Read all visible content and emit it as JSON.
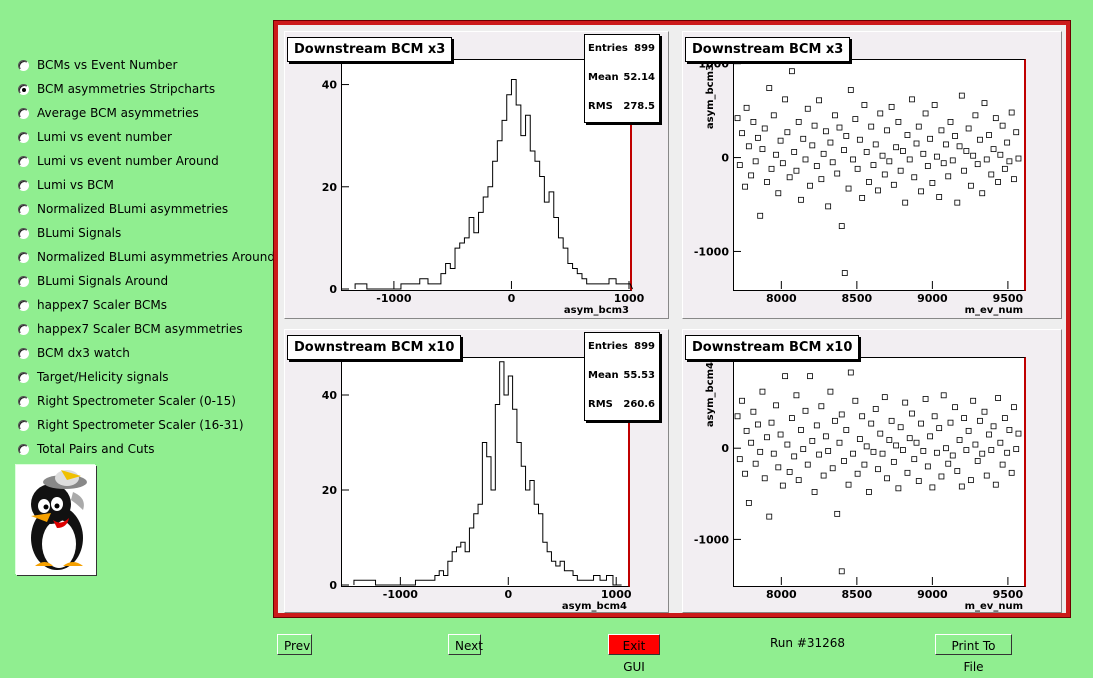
{
  "menu": {
    "items": [
      {
        "label": "BCMs vs Event Number",
        "selected": false
      },
      {
        "label": "BCM asymmetries Stripcharts",
        "selected": true
      },
      {
        "label": "Average BCM asymmetries",
        "selected": false
      },
      {
        "label": "Lumi vs event number",
        "selected": false
      },
      {
        "label": "Lumi vs event number Around",
        "selected": false
      },
      {
        "label": "Lumi vs BCM",
        "selected": false
      },
      {
        "label": "Normalized BLumi asymmetries",
        "selected": false
      },
      {
        "label": "BLumi Signals",
        "selected": false
      },
      {
        "label": "Normalized BLumi asymmetries Around",
        "selected": false
      },
      {
        "label": "BLumi Signals Around",
        "selected": false
      },
      {
        "label": "happex7 Scaler BCMs",
        "selected": false
      },
      {
        "label": "happex7 Scaler BCM asymmetries",
        "selected": false
      },
      {
        "label": "BCM dx3 watch",
        "selected": false
      },
      {
        "label": "Target/Helicity signals",
        "selected": false
      },
      {
        "label": "Right Spectrometer Scaler (0-15)",
        "selected": false
      },
      {
        "label": "Right Spectrometer Scaler (16-31)",
        "selected": false
      },
      {
        "label": "Total Pairs and Cuts",
        "selected": false
      }
    ]
  },
  "buttons": {
    "prev": "Prev",
    "next": "Next",
    "exit": "Exit GUI",
    "print": "Print To File"
  },
  "run_label": "Run #31268",
  "colors": {
    "background": "#90ee90",
    "frame": "#cc1a1a",
    "exit_button": "#ff0000"
  },
  "chart_data": [
    {
      "type": "histogram",
      "title": "Downstream BCM x3",
      "xlabel": "asym_bcm3",
      "xlim": [
        -1450,
        1000
      ],
      "ylim": [
        0,
        45
      ],
      "xticks": [
        -1000,
        0,
        1000
      ],
      "xtick_labels": [
        "-1000",
        "0",
        "1000"
      ],
      "yticks": [
        0,
        20,
        40
      ],
      "ytick_labels": [
        "0",
        "20",
        "40"
      ],
      "stats": [
        {
          "name": "Entries",
          "value": "899"
        },
        {
          "name": "Mean",
          "value": "52.14"
        },
        {
          "name": "RMS",
          "value": "278.5"
        }
      ],
      "x": [
        -1280,
        -1180,
        -1080,
        -980,
        -900,
        -820,
        -740,
        -680,
        -620,
        -580,
        -540,
        -500,
        -460,
        -420,
        -380,
        -340,
        -300,
        -260,
        -220,
        -180,
        -140,
        -100,
        -60,
        -20,
        20,
        60,
        100,
        140,
        180,
        220,
        260,
        300,
        340,
        380,
        420,
        460,
        500,
        540,
        580,
        620,
        660,
        700,
        740,
        800,
        860,
        920,
        980
      ],
      "values": [
        1,
        0,
        0,
        0,
        1,
        1,
        2,
        1,
        1,
        3,
        5,
        4,
        8,
        9,
        10,
        14,
        11,
        15,
        18,
        20,
        25,
        29,
        33,
        38,
        41,
        36,
        30,
        34,
        27,
        25,
        22,
        17,
        19,
        14,
        10,
        8,
        5,
        4,
        3,
        2,
        1,
        1,
        1,
        1,
        2,
        1,
        1
      ]
    },
    {
      "type": "scatter",
      "title": "Downstream BCM x3",
      "xlabel": "m_ev_num",
      "ylabel": "asym_bcm3",
      "xlim": [
        7680,
        9600
      ],
      "ylim": [
        -1400,
        1050
      ],
      "xticks": [
        8000,
        8500,
        9000,
        9500
      ],
      "xtick_labels": [
        "8000",
        "8500",
        "9000",
        "9500"
      ],
      "yticks": [
        -1000,
        0,
        1000
      ],
      "ytick_labels": [
        "-1000",
        "0",
        "1000"
      ],
      "points": [
        [
          7710,
          420
        ],
        [
          7725,
          -80
        ],
        [
          7740,
          260
        ],
        [
          7760,
          -310
        ],
        [
          7770,
          530
        ],
        [
          7785,
          120
        ],
        [
          7800,
          -190
        ],
        [
          7815,
          380
        ],
        [
          7830,
          -40
        ],
        [
          7845,
          210
        ],
        [
          7860,
          -620
        ],
        [
          7875,
          90
        ],
        [
          7890,
          310
        ],
        [
          7905,
          -260
        ],
        [
          7920,
          740
        ],
        [
          7935,
          -120
        ],
        [
          7950,
          450
        ],
        [
          7965,
          30
        ],
        [
          7980,
          -380
        ],
        [
          7995,
          180
        ],
        [
          8010,
          -60
        ],
        [
          8025,
          620
        ],
        [
          8040,
          270
        ],
        [
          8055,
          -210
        ],
        [
          8070,
          920
        ],
        [
          8085,
          60
        ],
        [
          8100,
          -140
        ],
        [
          8115,
          380
        ],
        [
          8130,
          -450
        ],
        [
          8145,
          200
        ],
        [
          8160,
          -20
        ],
        [
          8175,
          520
        ],
        [
          8190,
          -300
        ],
        [
          8205,
          130
        ],
        [
          8220,
          340
        ],
        [
          8235,
          -90
        ],
        [
          8250,
          610
        ],
        [
          8265,
          -230
        ],
        [
          8280,
          40
        ],
        [
          8295,
          280
        ],
        [
          8310,
          -520
        ],
        [
          8325,
          160
        ],
        [
          8340,
          -50
        ],
        [
          8355,
          450
        ],
        [
          8370,
          -170
        ],
        [
          8385,
          320
        ],
        [
          8400,
          -730
        ],
        [
          8415,
          80
        ],
        [
          8430,
          230
        ],
        [
          8445,
          -330
        ],
        [
          8460,
          720
        ],
        [
          8475,
          -20
        ],
        [
          8490,
          410
        ],
        [
          8505,
          -120
        ],
        [
          8520,
          190
        ],
        [
          8535,
          -430
        ],
        [
          8550,
          560
        ],
        [
          8565,
          60
        ],
        [
          8580,
          -260
        ],
        [
          8595,
          330
        ],
        [
          8610,
          -80
        ],
        [
          8625,
          140
        ],
        [
          8640,
          -350
        ],
        [
          8655,
          470
        ],
        [
          8670,
          20
        ],
        [
          8685,
          -180
        ],
        [
          8700,
          290
        ],
        [
          8715,
          -40
        ],
        [
          8730,
          540
        ],
        [
          8745,
          -290
        ],
        [
          8760,
          110
        ],
        [
          8775,
          380
        ],
        [
          8790,
          -140
        ],
        [
          8805,
          70
        ],
        [
          8820,
          -480
        ],
        [
          8835,
          240
        ],
        [
          8850,
          -20
        ],
        [
          8865,
          620
        ],
        [
          8880,
          -210
        ],
        [
          8895,
          150
        ],
        [
          8910,
          330
        ],
        [
          8925,
          -360
        ],
        [
          8940,
          40
        ],
        [
          8955,
          470
        ],
        [
          8970,
          -90
        ],
        [
          8985,
          200
        ],
        [
          9000,
          -270
        ],
        [
          9015,
          560
        ],
        [
          9030,
          10
        ],
        [
          9045,
          -420
        ],
        [
          9060,
          290
        ],
        [
          9075,
          -60
        ],
        [
          9090,
          140
        ],
        [
          9105,
          -200
        ],
        [
          9120,
          380
        ],
        [
          9135,
          -30
        ],
        [
          9150,
          230
        ],
        [
          9165,
          -480
        ],
        [
          9180,
          120
        ],
        [
          9195,
          660
        ],
        [
          9210,
          -140
        ],
        [
          9225,
          70
        ],
        [
          9240,
          310
        ],
        [
          9255,
          -300
        ],
        [
          9270,
          20
        ],
        [
          9285,
          450
        ],
        [
          9300,
          -70
        ],
        [
          9315,
          190
        ],
        [
          9330,
          -380
        ],
        [
          9345,
          580
        ],
        [
          9360,
          -20
        ],
        [
          9375,
          240
        ],
        [
          9390,
          -180
        ],
        [
          9405,
          90
        ],
        [
          9420,
          420
        ],
        [
          9435,
          -260
        ],
        [
          9450,
          30
        ],
        [
          9465,
          340
        ],
        [
          9480,
          -120
        ],
        [
          9495,
          160
        ],
        [
          9510,
          -40
        ],
        [
          9525,
          480
        ],
        [
          9540,
          -230
        ],
        [
          9555,
          270
        ],
        [
          9570,
          -10
        ],
        [
          8420,
          -1230
        ]
      ]
    },
    {
      "type": "histogram",
      "title": "Downstream BCM x10",
      "xlabel": "asym_bcm4",
      "xlim": [
        -1550,
        1100
      ],
      "ylim": [
        0,
        48
      ],
      "xticks": [
        -1000,
        0,
        1000
      ],
      "xtick_labels": [
        "-1000",
        "0",
        "1000"
      ],
      "yticks": [
        0,
        20,
        40
      ],
      "ytick_labels": [
        "0",
        "20",
        "40"
      ],
      "stats": [
        {
          "name": "Entries",
          "value": "899"
        },
        {
          "name": "Mean",
          "value": "55.53"
        },
        {
          "name": "RMS",
          "value": "260.6"
        }
      ],
      "x": [
        -1380,
        -1280,
        -1180,
        -1080,
        -980,
        -900,
        -820,
        -760,
        -700,
        -660,
        -620,
        -580,
        -540,
        -500,
        -460,
        -420,
        -380,
        -340,
        -300,
        -260,
        -220,
        -180,
        -140,
        -100,
        -60,
        -20,
        20,
        60,
        100,
        140,
        180,
        220,
        260,
        300,
        340,
        380,
        420,
        460,
        500,
        540,
        580,
        620,
        660,
        700,
        760,
        820,
        880,
        940,
        1000
      ],
      "values": [
        1,
        1,
        0,
        0,
        0,
        0,
        1,
        1,
        1,
        2,
        3,
        2,
        5,
        7,
        8,
        9,
        7,
        12,
        15,
        17,
        30,
        27,
        20,
        38,
        47,
        40,
        44,
        37,
        30,
        25,
        20,
        22,
        17,
        15,
        9,
        7,
        5,
        4,
        5,
        3,
        3,
        2,
        1,
        1,
        1,
        2,
        1,
        2,
        0
      ]
    },
    {
      "type": "scatter",
      "title": "Downstream BCM x10",
      "xlabel": "m_ev_num",
      "ylabel": "asym_bcm4",
      "xlim": [
        7680,
        9600
      ],
      "ylim": [
        -1500,
        1000
      ],
      "xticks": [
        8000,
        8500,
        9000,
        9500
      ],
      "xtick_labels": [
        "8000",
        "8500",
        "9000",
        "9500"
      ],
      "yticks": [
        -1000,
        0,
        1000
      ],
      "ytick_labels": [
        "-1000",
        "0",
        "1000"
      ],
      "points": [
        [
          7710,
          350
        ],
        [
          7725,
          -120
        ],
        [
          7740,
          520
        ],
        [
          7760,
          -280
        ],
        [
          7770,
          190
        ],
        [
          7785,
          -600
        ],
        [
          7800,
          60
        ],
        [
          7815,
          400
        ],
        [
          7830,
          -170
        ],
        [
          7845,
          260
        ],
        [
          7860,
          -40
        ],
        [
          7875,
          620
        ],
        [
          7890,
          -330
        ],
        [
          7905,
          120
        ],
        [
          7920,
          -750
        ],
        [
          7935,
          280
        ],
        [
          7950,
          -60
        ],
        [
          7965,
          470
        ],
        [
          7980,
          -210
        ],
        [
          7995,
          150
        ],
        [
          8010,
          -410
        ],
        [
          8025,
          790
        ],
        [
          8040,
          40
        ],
        [
          8055,
          -260
        ],
        [
          8070,
          330
        ],
        [
          8085,
          -90
        ],
        [
          8100,
          580
        ],
        [
          8115,
          -350
        ],
        [
          8130,
          200
        ],
        [
          8145,
          -10
        ],
        [
          8160,
          410
        ],
        [
          8175,
          -180
        ],
        [
          8190,
          790
        ],
        [
          8205,
          80
        ],
        [
          8220,
          -480
        ],
        [
          8235,
          250
        ],
        [
          8250,
          -70
        ],
        [
          8265,
          460
        ],
        [
          8280,
          -300
        ],
        [
          8295,
          130
        ],
        [
          8310,
          -30
        ],
        [
          8325,
          620
        ],
        [
          8340,
          -220
        ],
        [
          8355,
          300
        ],
        [
          8370,
          -720
        ],
        [
          8385,
          60
        ],
        [
          8400,
          370
        ],
        [
          8415,
          -140
        ],
        [
          8430,
          200
        ],
        [
          8445,
          -400
        ],
        [
          8460,
          830
        ],
        [
          8475,
          -60
        ],
        [
          8490,
          520
        ],
        [
          8505,
          -280
        ],
        [
          8520,
          100
        ],
        [
          8535,
          350
        ],
        [
          8550,
          -180
        ],
        [
          8565,
          20
        ],
        [
          8580,
          -480
        ],
        [
          8595,
          270
        ],
        [
          8610,
          -40
        ],
        [
          8625,
          430
        ],
        [
          8640,
          -230
        ],
        [
          8655,
          160
        ],
        [
          8670,
          -60
        ],
        [
          8685,
          560
        ],
        [
          8700,
          -330
        ],
        [
          8715,
          90
        ],
        [
          8730,
          300
        ],
        [
          8745,
          -150
        ],
        [
          8760,
          30
        ],
        [
          8775,
          -440
        ],
        [
          8790,
          230
        ],
        [
          8805,
          -20
        ],
        [
          8820,
          500
        ],
        [
          8835,
          -270
        ],
        [
          8850,
          110
        ],
        [
          8865,
          380
        ],
        [
          8880,
          -120
        ],
        [
          8895,
          60
        ],
        [
          8910,
          -360
        ],
        [
          8925,
          270
        ],
        [
          8940,
          -30
        ],
        [
          8955,
          540
        ],
        [
          8970,
          -200
        ],
        [
          8985,
          130
        ],
        [
          9000,
          -430
        ],
        [
          9015,
          350
        ],
        [
          9030,
          -50
        ],
        [
          9045,
          220
        ],
        [
          9060,
          -310
        ],
        [
          9075,
          580
        ],
        [
          9090,
          0
        ],
        [
          9105,
          -170
        ],
        [
          9120,
          280
        ],
        [
          9135,
          -80
        ],
        [
          9150,
          450
        ],
        [
          9165,
          -250
        ],
        [
          9180,
          90
        ],
        [
          9195,
          -420
        ],
        [
          9210,
          330
        ],
        [
          9225,
          -20
        ],
        [
          9240,
          190
        ],
        [
          9255,
          -350
        ],
        [
          9270,
          520
        ],
        [
          9285,
          40
        ],
        [
          9300,
          -140
        ],
        [
          9315,
          300
        ],
        [
          9330,
          -60
        ],
        [
          9345,
          400
        ],
        [
          9360,
          -300
        ],
        [
          9375,
          150
        ],
        [
          9390,
          -20
        ],
        [
          9405,
          240
        ],
        [
          9420,
          -400
        ],
        [
          9435,
          550
        ],
        [
          9450,
          60
        ],
        [
          9465,
          -180
        ],
        [
          9480,
          330
        ],
        [
          9495,
          -50
        ],
        [
          9510,
          200
        ],
        [
          9525,
          -270
        ],
        [
          9540,
          450
        ],
        [
          9555,
          -10
        ],
        [
          9570,
          160
        ],
        [
          8400,
          -1350
        ]
      ]
    }
  ]
}
